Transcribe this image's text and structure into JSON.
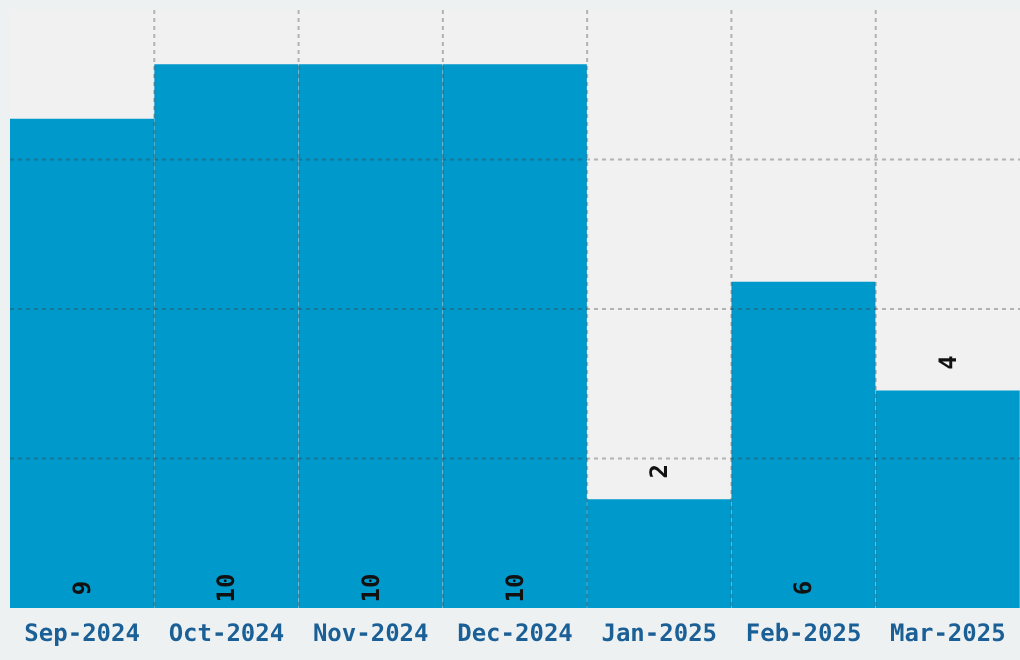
{
  "chart_data": {
    "type": "bar",
    "categories": [
      "Sep-2024",
      "Oct-2024",
      "Nov-2024",
      "Dec-2024",
      "Jan-2025",
      "Feb-2025",
      "Mar-2025"
    ],
    "values": [
      9,
      10,
      10,
      10,
      2,
      6,
      4
    ],
    "color": "#0099cc",
    "ylim": [
      0,
      11
    ],
    "tick_labels": "x",
    "grid": true,
    "data_labels": true
  }
}
